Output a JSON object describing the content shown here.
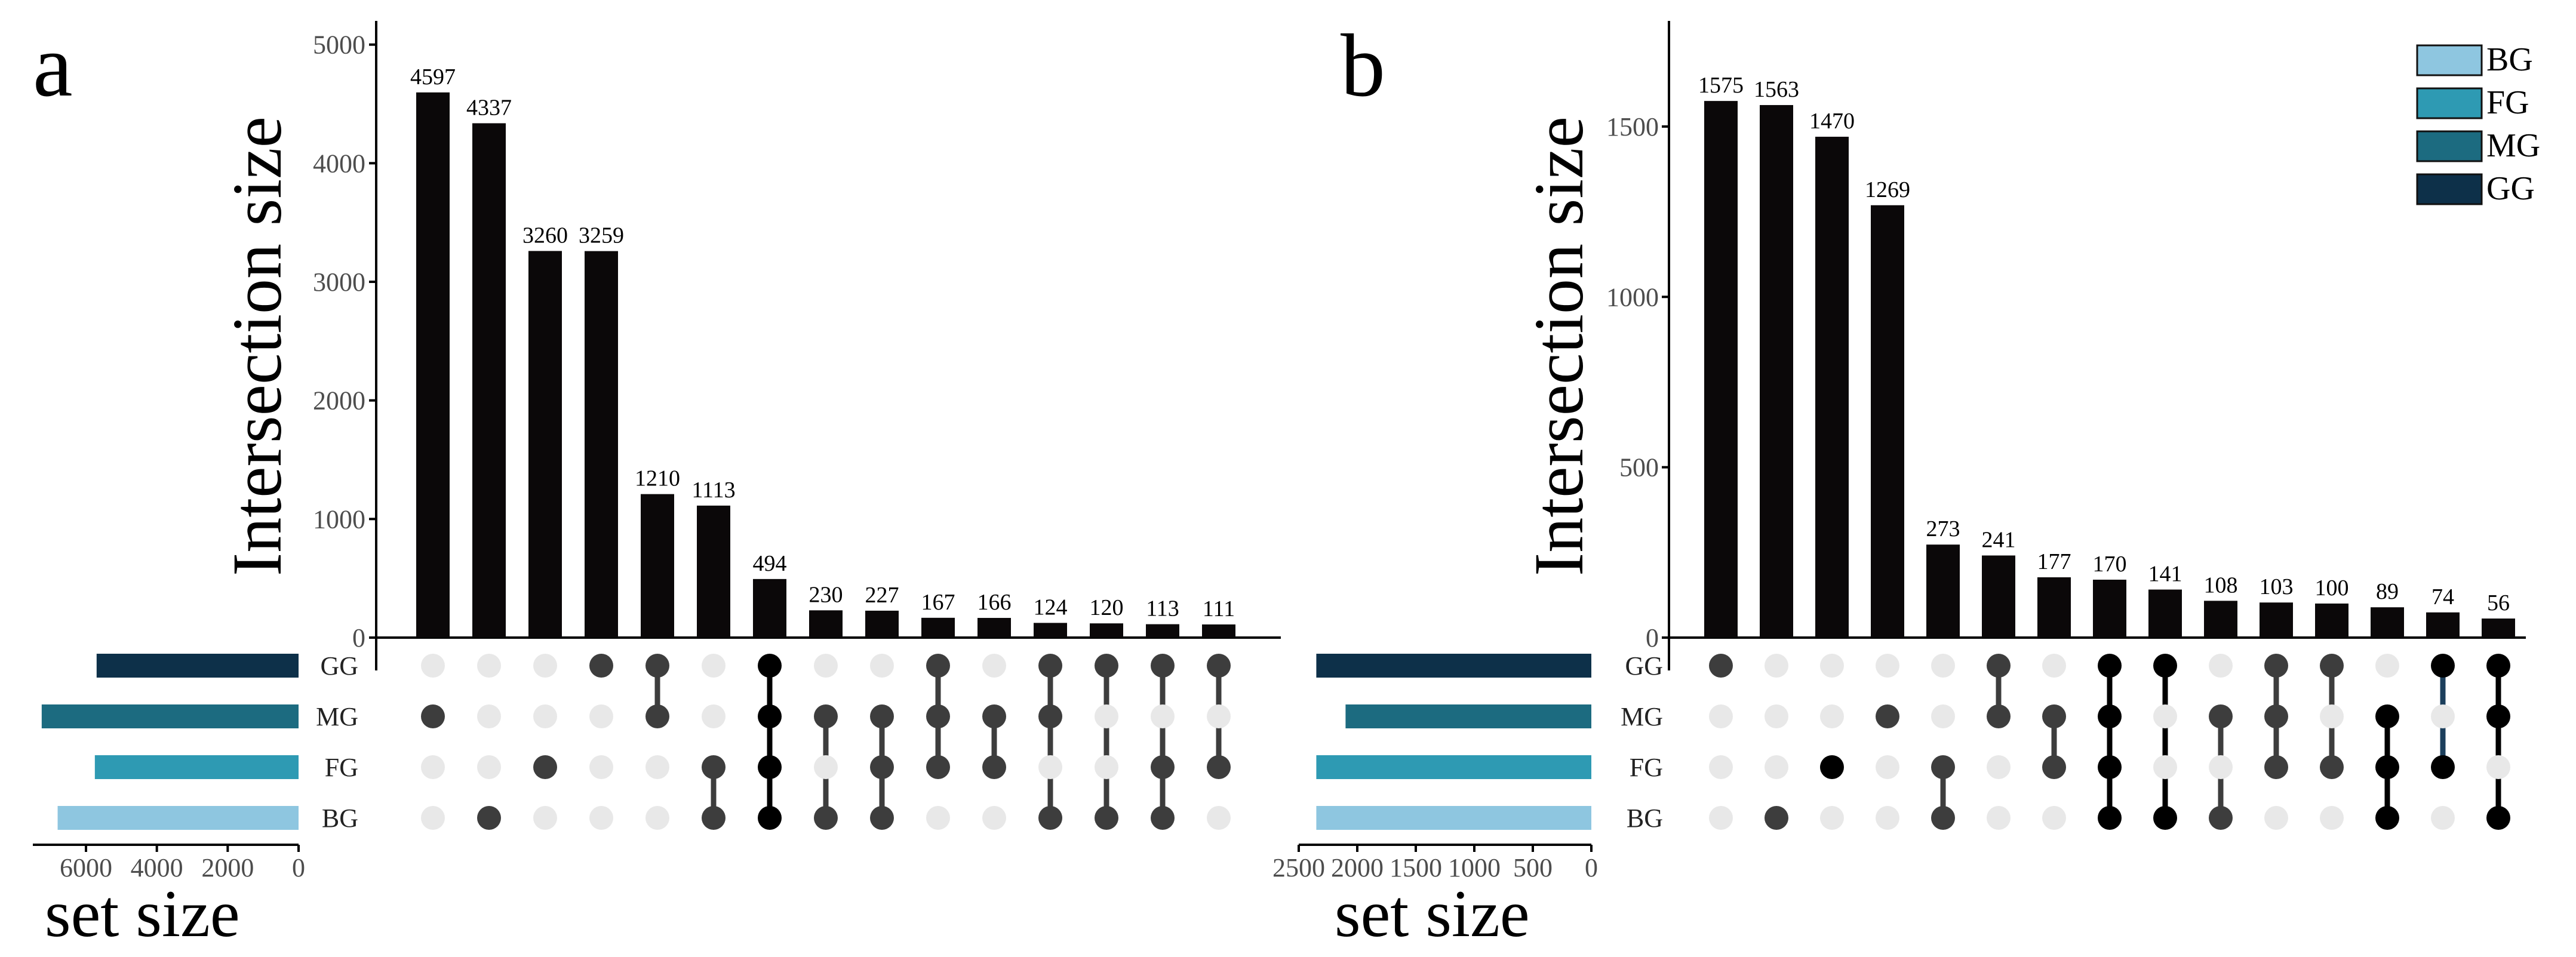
{
  "colors": {
    "bar": "#0b0809",
    "dot_active_a": "#3d3d3d",
    "dot_inactive": "#e8e8e8",
    "axis": "#000000",
    "tick_text": "#4d4d4d",
    "set_colors": {
      "GG": "#0d3049",
      "MG": "#1c6b80",
      "FG": "#2e9ab3",
      "BG": "#8ec6e0"
    },
    "line_b_special": "#1c3f5c"
  },
  "legend": {
    "entries": [
      {
        "label": "BG",
        "color": "#8ec6e0"
      },
      {
        "label": "FG",
        "color": "#2e9ab3"
      },
      {
        "label": "MG",
        "color": "#1c6b80"
      },
      {
        "label": "GG",
        "color": "#0d3049"
      }
    ]
  },
  "chart_data": [
    {
      "panel_label": "a",
      "type": "bar",
      "title": "",
      "ylabel": "Intersection size",
      "xlabel_setsize": "set size",
      "ylim": [
        0,
        5200
      ],
      "yticks": [
        0,
        1000,
        2000,
        3000,
        4000,
        5000
      ],
      "sets": [
        "GG",
        "MG",
        "FG",
        "BG"
      ],
      "set_sizes": {
        "GG": 5700,
        "MG": 7250,
        "FG": 5750,
        "BG": 6800
      },
      "set_size_xlim": [
        0,
        7500
      ],
      "set_size_ticks": [
        6000,
        4000,
        2000,
        0
      ],
      "intersections": [
        {
          "sets": [
            "MG"
          ],
          "value": 4597
        },
        {
          "sets": [
            "BG"
          ],
          "value": 4337
        },
        {
          "sets": [
            "FG"
          ],
          "value": 3260
        },
        {
          "sets": [
            "GG"
          ],
          "value": 3259
        },
        {
          "sets": [
            "GG",
            "MG"
          ],
          "value": 1210
        },
        {
          "sets": [
            "FG",
            "BG"
          ],
          "value": 1113
        },
        {
          "sets": [
            "GG",
            "MG",
            "FG",
            "BG"
          ],
          "value": 494,
          "highlight": true
        },
        {
          "sets": [
            "MG",
            "BG"
          ],
          "value": 230
        },
        {
          "sets": [
            "MG",
            "FG",
            "BG"
          ],
          "value": 227
        },
        {
          "sets": [
            "GG",
            "MG",
            "FG"
          ],
          "value": 167
        },
        {
          "sets": [
            "MG",
            "FG"
          ],
          "value": 166
        },
        {
          "sets": [
            "GG",
            "MG",
            "BG"
          ],
          "value": 124
        },
        {
          "sets": [
            "GG",
            "BG"
          ],
          "value": 120
        },
        {
          "sets": [
            "GG",
            "FG",
            "BG"
          ],
          "value": 113
        },
        {
          "sets": [
            "GG",
            "FG"
          ],
          "value": 111
        }
      ]
    },
    {
      "panel_label": "b",
      "type": "bar",
      "title": "",
      "ylabel": "Intersection size",
      "xlabel_setsize": "set size",
      "ylim": [
        0,
        1810
      ],
      "yticks": [
        0,
        500,
        1000,
        1500
      ],
      "sets": [
        "GG",
        "MG",
        "FG",
        "BG"
      ],
      "set_sizes": {
        "GG": 2350,
        "MG": 2100,
        "FG": 2350,
        "BG": 2350
      },
      "set_size_xlim": [
        0,
        2500
      ],
      "set_size_ticks": [
        2500,
        2000,
        1500,
        1000,
        500,
        0
      ],
      "set_size_tick_labels": [
        "2500",
        "2000",
        "1500",
        "1000",
        "500",
        "0"
      ],
      "intersections": [
        {
          "sets": [
            "GG"
          ],
          "value": 1575
        },
        {
          "sets": [
            "BG"
          ],
          "value": 1563
        },
        {
          "sets": [
            "FG"
          ],
          "value": 1470,
          "highlight": true
        },
        {
          "sets": [
            "MG"
          ],
          "value": 1269
        },
        {
          "sets": [
            "FG",
            "BG"
          ],
          "value": 273
        },
        {
          "sets": [
            "GG",
            "MG"
          ],
          "value": 241
        },
        {
          "sets": [
            "MG",
            "FG"
          ],
          "value": 177
        },
        {
          "sets": [
            "GG",
            "MG",
            "FG",
            "BG"
          ],
          "value": 170,
          "highlight": true
        },
        {
          "sets": [
            "GG",
            "BG"
          ],
          "value": 141,
          "highlight": true
        },
        {
          "sets": [
            "MG",
            "BG"
          ],
          "value": 108
        },
        {
          "sets": [
            "GG",
            "MG",
            "FG"
          ],
          "value": 103
        },
        {
          "sets": [
            "GG",
            "FG"
          ],
          "value": 100
        },
        {
          "sets": [
            "MG",
            "FG",
            "BG"
          ],
          "value": 89,
          "highlight": true
        },
        {
          "sets": [
            "GG",
            "FG"
          ],
          "value": 74,
          "highlight": true,
          "special_line": true
        },
        {
          "sets": [
            "GG",
            "MG",
            "BG"
          ],
          "value": 56,
          "highlight": true
        }
      ]
    }
  ]
}
